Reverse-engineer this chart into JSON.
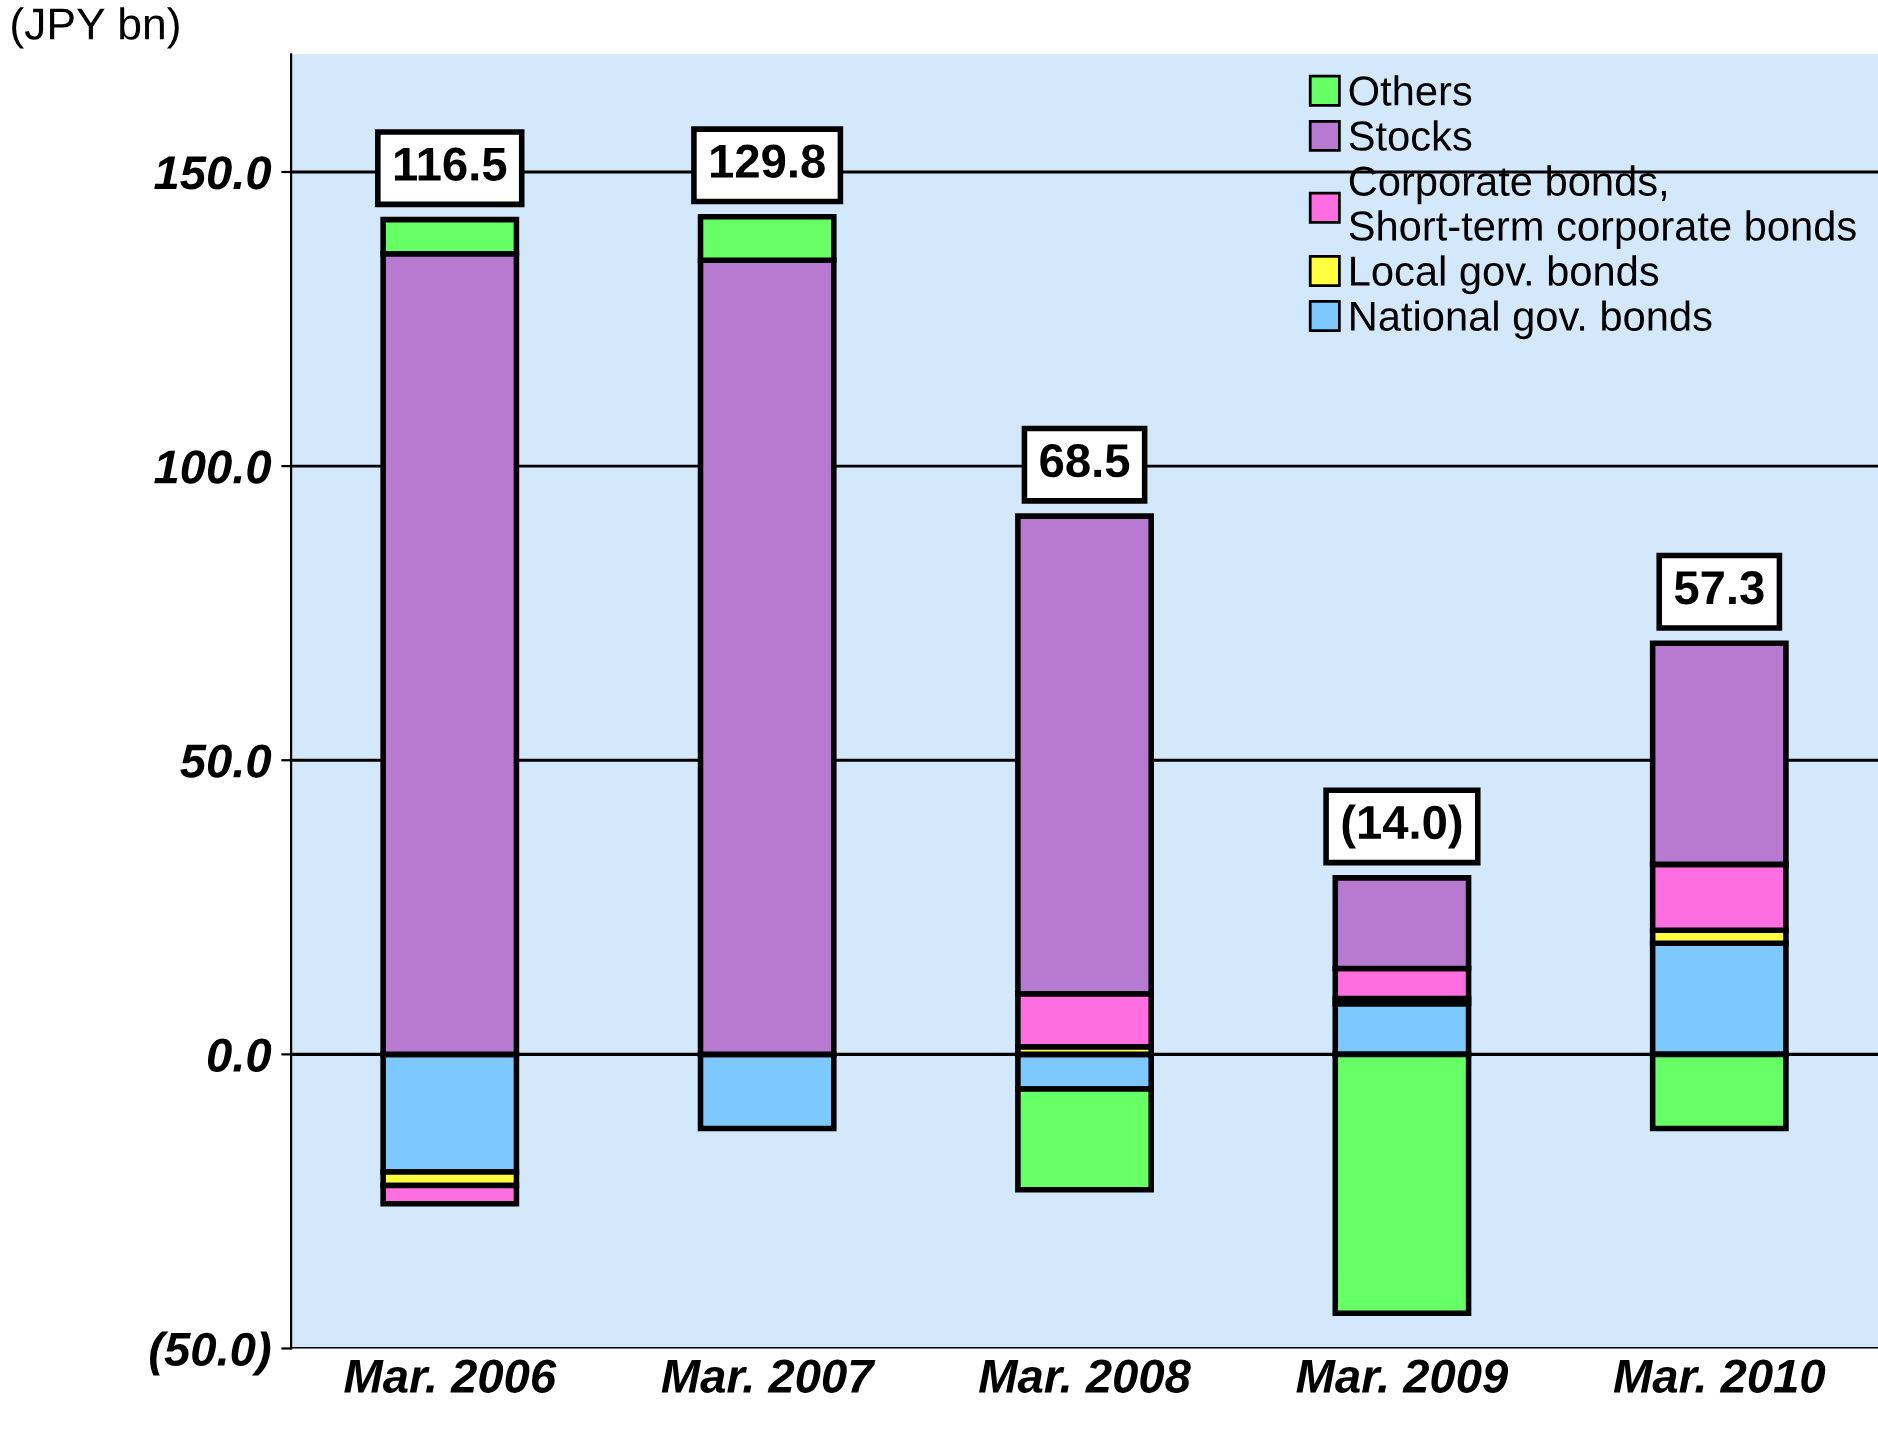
{
  "chart_data": {
    "type": "bar",
    "stacked": true,
    "ylabel": "(JPY bn)",
    "categories": [
      "Mar. 2006",
      "Mar. 2007",
      "Mar. 2008",
      "Mar. 2009",
      "Mar. 2010"
    ],
    "series": [
      {
        "name": "National gov. bonds",
        "color": "#7cc8ff",
        "values": [
          -20.0,
          -12.6,
          -5.9,
          8.6,
          18.9
        ]
      },
      {
        "name": "Local gov. bonds",
        "color": "#ffff40",
        "values": [
          -2.3,
          0,
          1.3,
          0.9,
          2.2
        ]
      },
      {
        "name": "Corporate bonds,\nShort-term corporate bonds",
        "color": "#ff6ee0",
        "values": [
          -3.1,
          0,
          9.0,
          5.1,
          11.2
        ]
      },
      {
        "name": "Stocks",
        "color": "#b77ad0",
        "values": [
          136.1,
          135.0,
          81.2,
          15.4,
          37.6
        ]
      },
      {
        "name": "Others",
        "color": "#66ff66",
        "values": [
          5.8,
          7.4,
          -17.1,
          -44.0,
          -12.6
        ]
      }
    ],
    "totals": [
      "116.5",
      "129.8",
      "68.5",
      "(14.0)",
      "57.3"
    ],
    "ylim": [
      -50,
      170
    ],
    "yticks": [
      {
        "value": -50,
        "label": "(50.0)"
      },
      {
        "value": 0,
        "label": "0.0"
      },
      {
        "value": 50,
        "label": "50.0"
      },
      {
        "value": 100,
        "label": "100.0"
      },
      {
        "value": 150,
        "label": "150.0"
      }
    ],
    "grid": "y",
    "legend": "top right"
  }
}
